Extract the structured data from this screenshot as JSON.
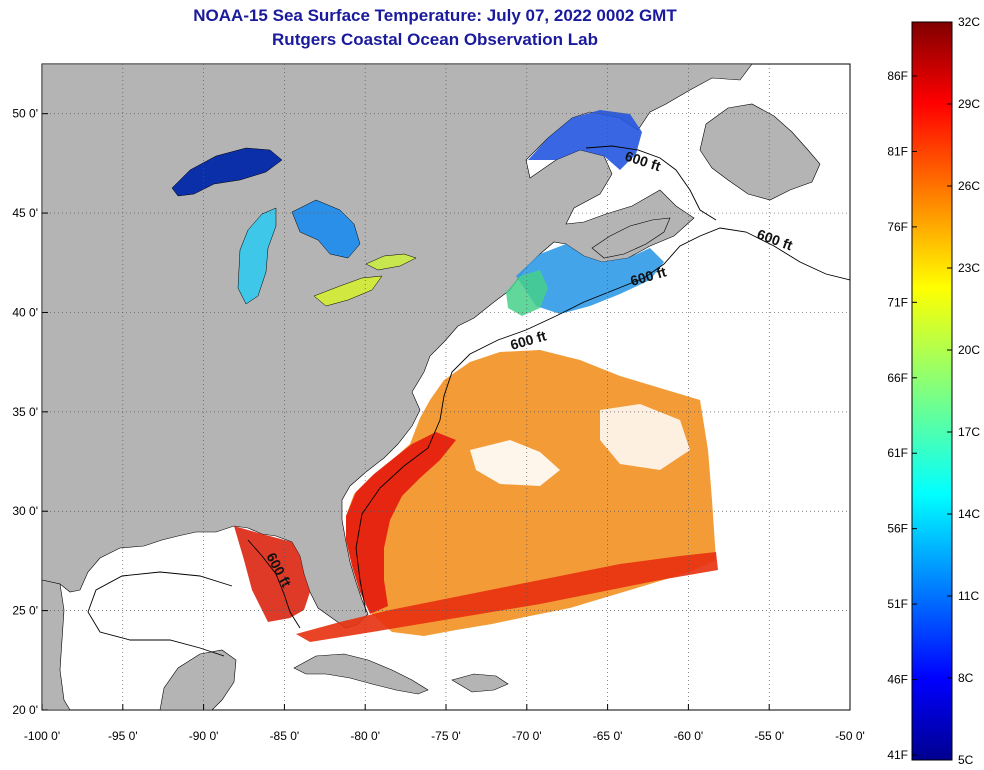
{
  "header": {
    "title": "NOAA-15 Sea Surface Temperature:  July 07, 2022 0002 GMT",
    "subtitle": "Rutgers Coastal Ocean Observation Lab"
  },
  "map": {
    "lon_range": [
      -100,
      -50
    ],
    "lat_range": [
      20,
      52.5
    ],
    "lon_ticks": [
      "-100 0'",
      "-95 0'",
      "-90 0'",
      "-85 0'",
      "-80 0'",
      "-75 0'",
      "-70 0'",
      "-65 0'",
      "-60 0'",
      "-55 0'",
      "-50 0'"
    ],
    "lat_ticks": [
      "50 0'",
      "45 0'",
      "40 0'",
      "35 0'",
      "30 0'",
      "25 0'",
      "20 0'"
    ],
    "lon_tick_values": [
      -100,
      -95,
      -90,
      -85,
      -80,
      -75,
      -70,
      -65,
      -60,
      -55,
      -50
    ],
    "lat_tick_values": [
      50,
      45,
      40,
      35,
      30,
      25,
      20
    ],
    "grid": "dotted",
    "land_color": "#b4b4b4",
    "no_data_color": "#ffffff",
    "contour_labels": [
      "600 ft",
      "600 ft",
      "600 ft",
      "600 ft",
      "600 ft"
    ]
  },
  "colorbar": {
    "fahrenheit_labels": [
      "86F",
      "81F",
      "76F",
      "71F",
      "66F",
      "61F",
      "56F",
      "51F",
      "46F",
      "41F"
    ],
    "celsius_labels": [
      "32C",
      "29C",
      "26C",
      "23C",
      "20C",
      "17C",
      "14C",
      "11C",
      "8C",
      "5C"
    ],
    "range_c": [
      5,
      32
    ],
    "colormap": "jet"
  }
}
